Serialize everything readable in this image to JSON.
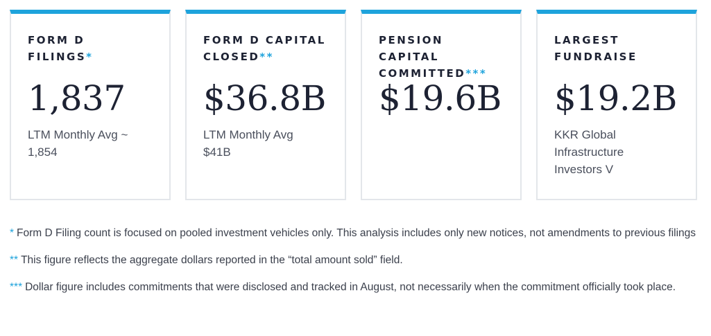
{
  "accent_color": "#1ea3dc",
  "cards": [
    {
      "title": "Form D Filings",
      "marker": "*",
      "value": "1,837",
      "subtitle": "LTM Monthly Avg ~ 1,854"
    },
    {
      "title": "Form D Capital Closed",
      "marker": "**",
      "value": "$36.8B",
      "subtitle": "LTM Monthly Avg $41B"
    },
    {
      "title": "Pension Capital Committed",
      "marker": "***",
      "value": "$19.6B",
      "subtitle": ""
    },
    {
      "title": "Largest Fundraise",
      "marker": "",
      "value": "$19.2B",
      "subtitle": "KKR Global Infrastructure Investors V"
    }
  ],
  "notes": [
    {
      "marker": "*",
      "text": "Form D Filing count is focused on pooled investment vehicles only. This analysis includes only new notices, not amendments to previous filings"
    },
    {
      "marker": "**",
      "text": "This figure reflects the aggregate dollars reported in the “total amount sold” field."
    },
    {
      "marker": "***",
      "text": "Dollar figure includes commitments that were disclosed and tracked in August, not necessarily when the commitment officially took place."
    }
  ]
}
